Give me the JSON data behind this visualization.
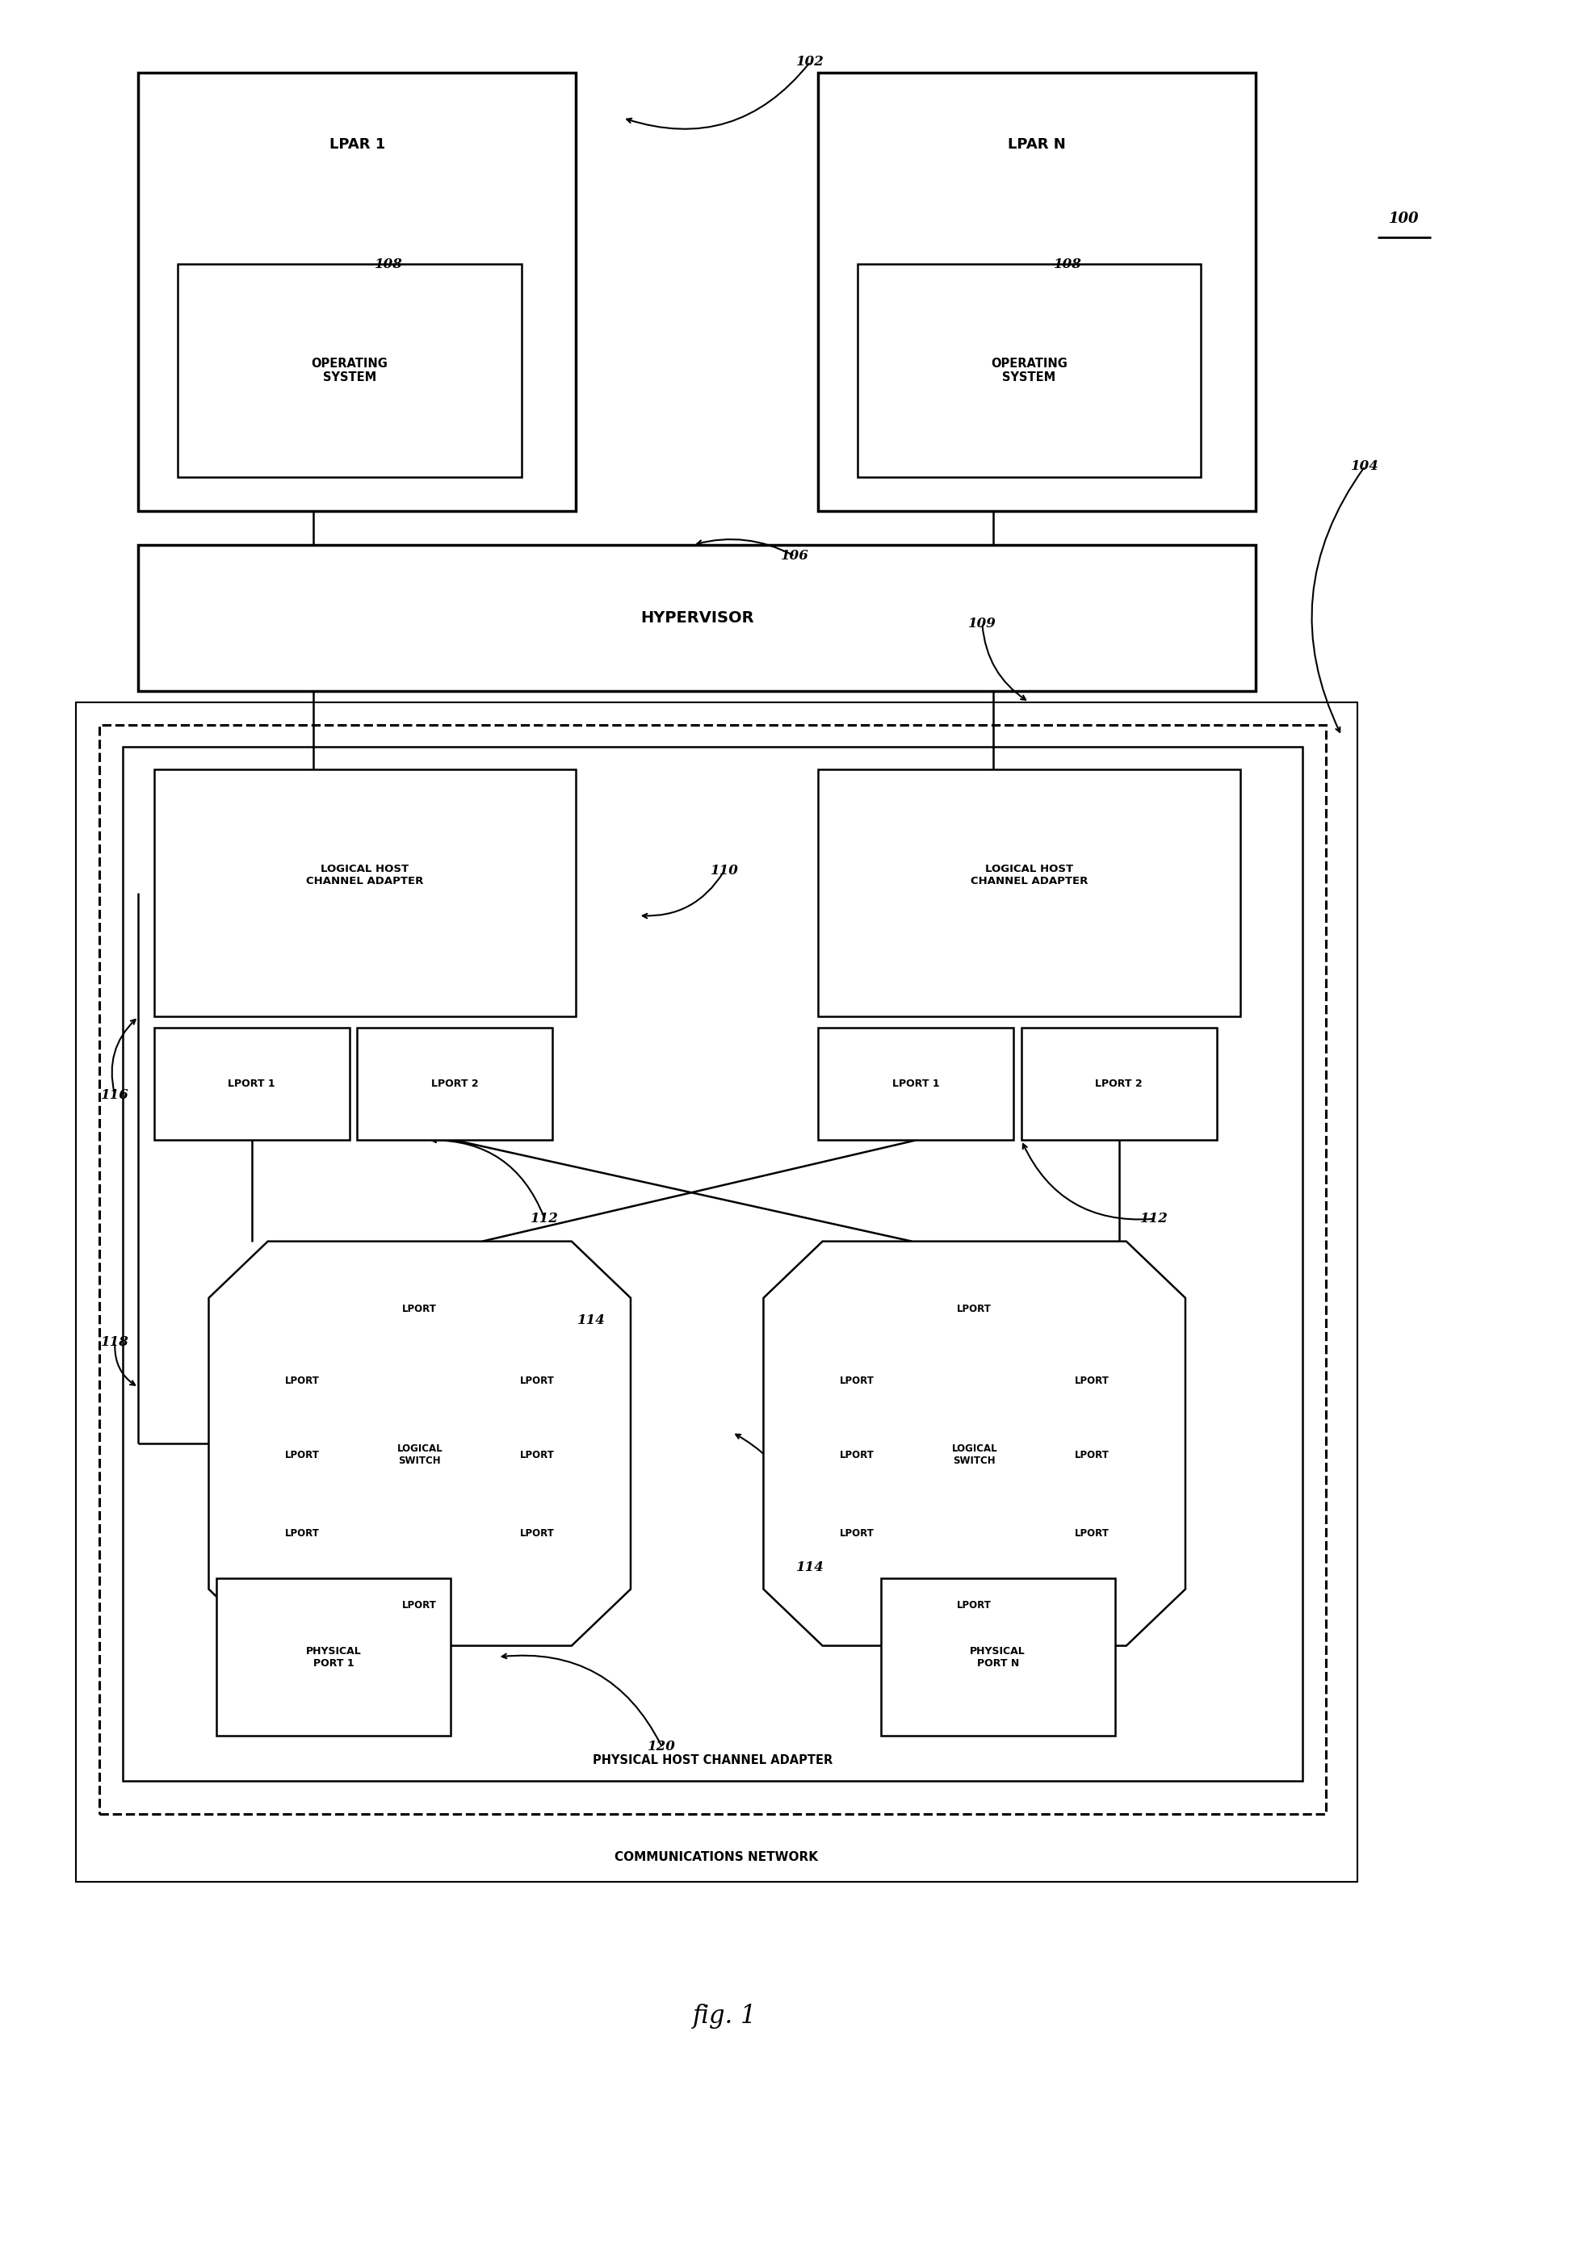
{
  "fig_width": 19.49,
  "fig_height": 27.97,
  "bg_color": "#ffffff",
  "lpar1_label": "LPAR 1",
  "lpar_n_label": "LPAR N",
  "os_label": "OPERATING\nSYSTEM",
  "hypervisor_label": "HYPERVISOR",
  "lhca_label": "LOGICAL HOST\nCHANNEL ADAPTER",
  "lport1_label": "LPORT 1",
  "lport2_label": "LPORT 2",
  "logical_switch_label": "LOGICAL\nSWITCH",
  "lport_label": "LPORT",
  "phca_label": "PHYSICAL HOST CHANNEL ADAPTER",
  "comm_net_label": "COMMUNICATIONS NETWORK",
  "phys_port1_label": "PHYSICAL\nPORT 1",
  "phys_port_n_label": "PHYSICAL\nPORT N",
  "fig_label": "fig. 1",
  "ref_100": "100",
  "ref_102": "102",
  "ref_104": "104",
  "ref_106": "106",
  "ref_108": "108",
  "ref_109": "109",
  "ref_110": "110",
  "ref_112": "112",
  "ref_114": "114",
  "ref_116": "116",
  "ref_118": "118",
  "ref_120": "120"
}
